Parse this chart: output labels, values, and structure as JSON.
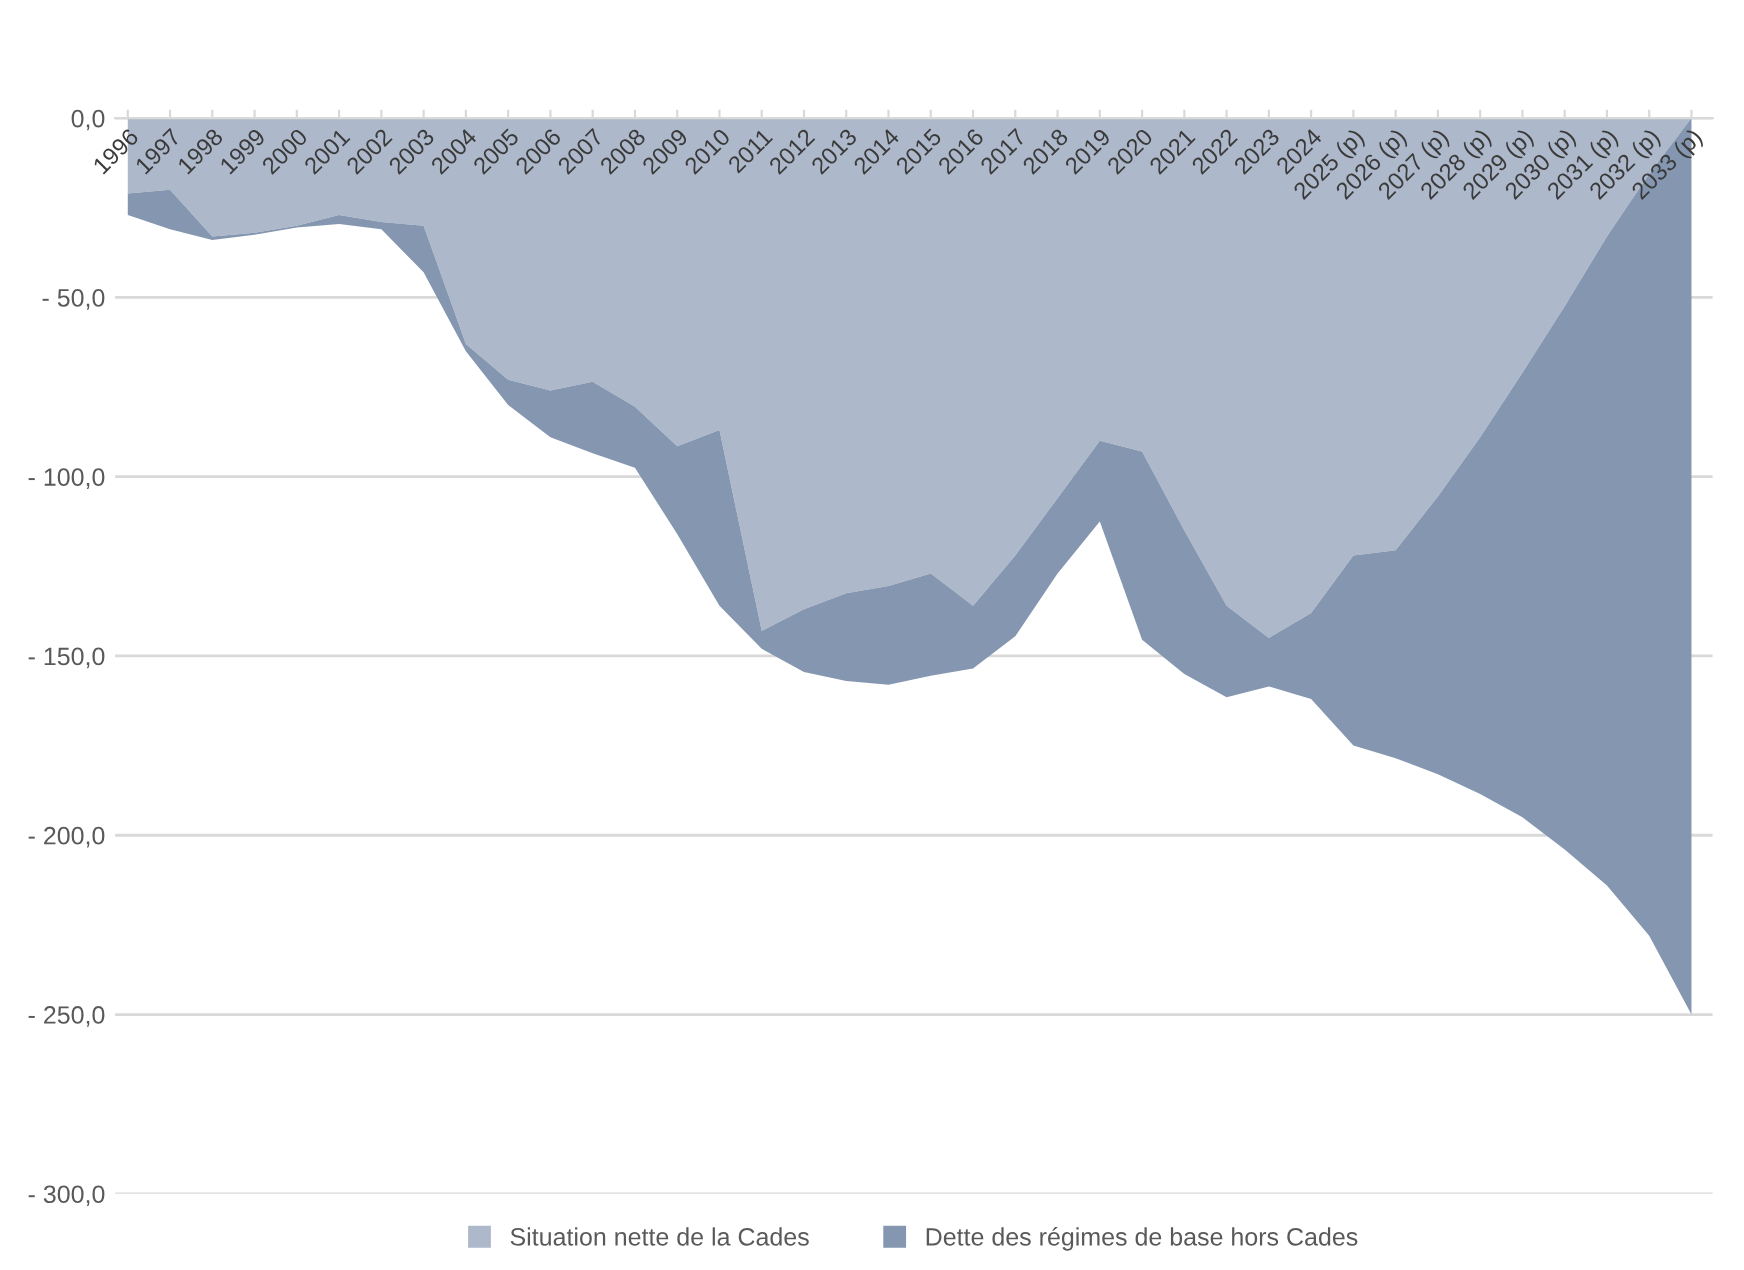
{
  "chart_data": {
    "type": "area",
    "stacked": true,
    "categories": [
      "1996",
      "1997",
      "1998",
      "1999",
      "2000",
      "2001",
      "2002",
      "2003",
      "2004",
      "2005",
      "2006",
      "2007",
      "2008",
      "2009",
      "2010",
      "2011",
      "2012",
      "2013",
      "2014",
      "2015",
      "2016",
      "2017",
      "2018",
      "2019",
      "2020",
      "2021",
      "2022",
      "2023",
      "2024",
      "2025 (p)",
      "2026 (p)",
      "2027 (p)",
      "2028 (p)",
      "2029 (p)",
      "2030 (p)",
      "2031 (p)",
      "2032 (p)",
      "2033 (p)"
    ],
    "series": [
      {
        "name": "Situation nette de la Cades",
        "color": "#adb8ca",
        "values": [
          -21,
          -20,
          -33,
          -32,
          -30,
          -27,
          -29,
          -30,
          -63,
          -73,
          -76,
          -73.5,
          -80.5,
          -91.5,
          -87,
          -143,
          -137,
          -132.5,
          -130.5,
          -127,
          -136,
          -122,
          -106,
          -90,
          -93,
          -115,
          -136,
          -145,
          -138,
          -122,
          -120.5,
          -105.5,
          -89,
          -71,
          -52.5,
          -33,
          -15.5,
          0
        ]
      },
      {
        "name": "Dette des régimes de base hors Cades",
        "color": "#8597b0",
        "values": [
          -6,
          -11,
          -1,
          -0.5,
          -0.5,
          -2.5,
          -2,
          -13,
          -2,
          -7,
          -13,
          -20,
          -17,
          -24.5,
          -49,
          -5,
          -17.5,
          -24.5,
          -27.5,
          -28.5,
          -17.5,
          -22.5,
          -21,
          -22.5,
          -52.5,
          -40,
          -25.5,
          -13.5,
          -24,
          -53,
          -58,
          -77.5,
          -99.5,
          -124,
          -151.5,
          -181,
          -212.5,
          -250
        ]
      }
    ],
    "ylim": [
      -300,
      0
    ],
    "yticks": [
      {
        "value": -300,
        "label": "- 300,0"
      },
      {
        "value": -250,
        "label": "- 250,0"
      },
      {
        "value": -200,
        "label": "- 200,0"
      },
      {
        "value": -150,
        "label": "- 150,0"
      },
      {
        "value": -100,
        "label": "- 100,0"
      },
      {
        "value": -50,
        "label": "- 50,0"
      },
      {
        "value": 0,
        "label": "0,0"
      }
    ],
    "grid": "y",
    "legend": "bottom"
  }
}
